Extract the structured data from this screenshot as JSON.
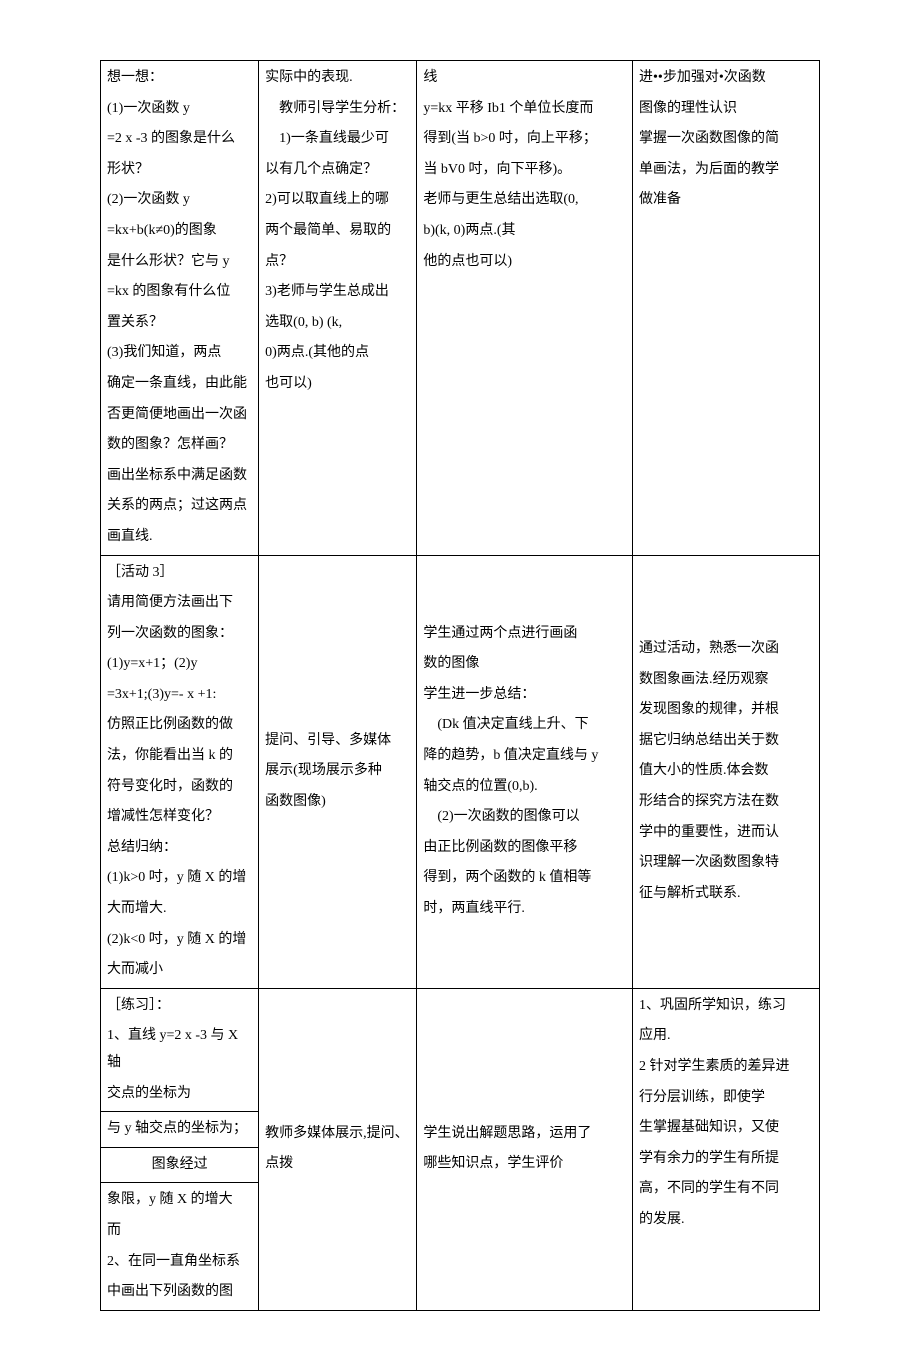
{
  "row1": {
    "col1": [
      "想一想：",
      "(1)一次函数 y",
      "=2 x -3 的图象是什么",
      "形状？",
      "(2)一次函数 y",
      "=kx+b(k≠0)的图象",
      "是什么形状？它与 y",
      "=kx 的图象有什么位",
      "置关系？",
      "(3)我们知道，两点",
      "确定一条直线，由此能",
      "否更简便地画出一次函",
      "数的图象？怎样画？",
      "画出坐标系中满足函数",
      "关系的两点；过这两点",
      "画直线."
    ],
    "col2": [
      "实际中的表现.",
      "",
      "　教师引导学生分析：",
      "　1)一条直线最少可",
      "以有几个点确定？",
      "2)可以取直线上的哪",
      "两个最简单、易取的",
      "点？",
      "3)老师与学生总成出",
      "选取(0, b) (k,",
      "0)两点.(其他的点",
      "也可以)"
    ],
    "col3": [
      "线",
      "y=kx 平移 Ib1 个单位长度而",
      "得到(当 b>0 吋，向上平移；",
      "当 bV0 吋，向下平移)。",
      "",
      "老师与更生总结出选取(0,",
      "b)(k, 0)两点.(其",
      "他的点也可以)"
    ],
    "col4": [
      "进••步加强对•次函数",
      "图像的理性认识",
      "",
      "掌握一次函数图像的简",
      "单画法，为后面的教学",
      "做准备"
    ]
  },
  "row2": {
    "col1": [
      "［活动 3］",
      "请用简便方法画出下",
      "列一次函数的图象：",
      "(1)y=x+1；(2)y",
      "=3x+1;(3)y=- x +1:",
      "",
      "仿照正比例函数的做",
      "法，你能看出当 k 的",
      "符号变化时，函数的",
      "增减性怎样变化？",
      "",
      "总结归纳：",
      "(1)k>0 吋，y 随 X 的增",
      "大而增大.",
      "(2)k<0 吋，y 随 X 的增",
      "大而减小"
    ],
    "col2": [
      "提问、引导、多媒体",
      "展示(现场展示多种",
      "函数图像)"
    ],
    "col3": [
      "学生通过两个点进行画函",
      "数的图像",
      "学生进一步总结：",
      "　(Dk 值决定直线上升、下",
      "降的趋势，b 值决定直线与 y",
      "轴交点的位置(0,b).",
      "　(2)一次函数的图像可以",
      "由正比例函数的图像平移",
      "得到，两个函数的 k 值相等",
      "时，两直线平行."
    ],
    "col4": [
      "通过活动，熟悉一次函",
      "数图象画法.经历观察",
      "发现图象的规律，并根",
      "据它归纳总结出关于数",
      "值大小的性质.体会数",
      "形结合的探究方法在数",
      "学中的重要性，进而认",
      "识理解一次函数图象特",
      "征与解析式联系."
    ]
  },
  "row3": {
    "col1a": [
      "［练习］：",
      "1、直线 y=2 x -3 与 X 轴",
      "交点的坐标为"
    ],
    "col1b": "与 y 轴交点的坐标为；",
    "col1c": "图象经过",
    "col1d": [
      "象限，y 随 X 的增大",
      "而",
      "2、在同一直角坐标系",
      "中画出下列函数的图"
    ],
    "col2": [
      "教师多媒体展示,提问、",
      "点拨"
    ],
    "col3": [
      "学生说出解题思路，运用了",
      "哪些知识点，学生评价"
    ],
    "col4": [
      "1、巩固所学知识，练习",
      "应用.",
      "2 针对学生素质的差异进",
      "行分层训练，即使学",
      "生掌握基础知识，又使",
      "学有余力的学生有所提",
      "高，不同的学生有不同",
      "的发展."
    ]
  }
}
